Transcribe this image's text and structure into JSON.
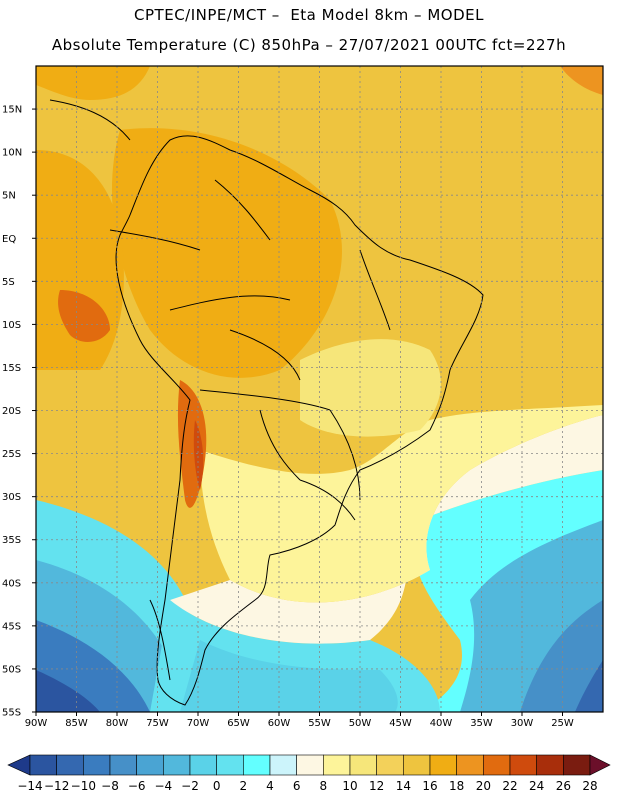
{
  "header": {
    "line1": "CPTEC/INPE/MCT –  Eta Model 8km – MODEL",
    "line2": "Absolute Temperature (C) 850hPa – 27/07/2021 00UTC fct=227h"
  },
  "map": {
    "lon_range": [
      -90,
      -20
    ],
    "lat_range": [
      -55,
      20
    ],
    "lat_ticks": [
      {
        "value": 15,
        "label": "15N"
      },
      {
        "value": 10,
        "label": "10N"
      },
      {
        "value": 5,
        "label": "5N"
      },
      {
        "value": 0,
        "label": "EQ"
      },
      {
        "value": -5,
        "label": "5S"
      },
      {
        "value": -10,
        "label": "10S"
      },
      {
        "value": -15,
        "label": "15S"
      },
      {
        "value": -20,
        "label": "20S"
      },
      {
        "value": -25,
        "label": "25S"
      },
      {
        "value": -30,
        "label": "30S"
      },
      {
        "value": -35,
        "label": "35S"
      },
      {
        "value": -40,
        "label": "40S"
      },
      {
        "value": -45,
        "label": "45S"
      },
      {
        "value": -50,
        "label": "50S"
      },
      {
        "value": -55,
        "label": "55S"
      }
    ],
    "lon_ticks": [
      {
        "value": -90,
        "label": "90W"
      },
      {
        "value": -85,
        "label": "85W"
      },
      {
        "value": -80,
        "label": "80W"
      },
      {
        "value": -75,
        "label": "75W"
      },
      {
        "value": -70,
        "label": "70W"
      },
      {
        "value": -65,
        "label": "65W"
      },
      {
        "value": -60,
        "label": "60W"
      },
      {
        "value": -55,
        "label": "55W"
      },
      {
        "value": -50,
        "label": "50W"
      },
      {
        "value": -45,
        "label": "45W"
      },
      {
        "value": -40,
        "label": "40W"
      },
      {
        "value": -35,
        "label": "35W"
      },
      {
        "value": -30,
        "label": "30W"
      },
      {
        "value": -25,
        "label": "25W"
      }
    ],
    "grid": true
  },
  "colorbar": {
    "labels": [
      "-14",
      "-12",
      "-10",
      "-8",
      "-6",
      "-4",
      "-2",
      "0",
      "2",
      "4",
      "6",
      "8",
      "10",
      "12",
      "14",
      "16",
      "18",
      "20",
      "22",
      "24",
      "26",
      "28"
    ],
    "colors": [
      "#1e3a8a",
      "#2b55a0",
      "#3468b0",
      "#3a7cbf",
      "#4690c8",
      "#4aa4d3",
      "#52b8dc",
      "#5ad2e8",
      "#63e2ef",
      "#63ffff",
      "#ccf4fb",
      "#fdf7e3",
      "#fdf49a",
      "#f6e67a",
      "#f3d15a",
      "#eec43f",
      "#f0ad14",
      "#ed9420",
      "#e16b0f",
      "#cf4b0d",
      "#a82e0b",
      "#7a1c10",
      "#6b0f2a"
    ]
  }
}
